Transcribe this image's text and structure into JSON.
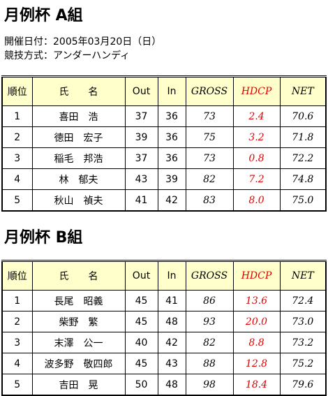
{
  "sections": [
    {
      "title": "月例杯 A組",
      "info": [
        "開催日付：2005年03月20日（日）",
        "競技方式：アンダーハンディ"
      ],
      "table": {
        "header": [
          "順位",
          "氏　　名",
          "Out",
          "In",
          "GROSS",
          "HDCP",
          "NET"
        ],
        "rows": [
          [
            "1",
            "喜田　浩",
            "37",
            "36",
            "73",
            "2.4",
            "70.6"
          ],
          [
            "2",
            "徳田　宏子",
            "39",
            "36",
            "75",
            "3.2",
            "71.8"
          ],
          [
            "3",
            "稲毛　邦浩",
            "37",
            "36",
            "73",
            "0.8",
            "72.2"
          ],
          [
            "4",
            "林　郁夫",
            "43",
            "39",
            "82",
            "7.2",
            "74.8"
          ],
          [
            "5",
            "秋山　禎夫",
            "41",
            "42",
            "83",
            "8.0",
            "75.0"
          ]
        ]
      }
    },
    {
      "title": "月例杯 B組",
      "info": [],
      "table": {
        "header": [
          "順位",
          "氏　　名",
          "Out",
          "In",
          "GROSS",
          "HDCP",
          "NET"
        ],
        "rows": [
          [
            "1",
            "長尾　昭義",
            "45",
            "41",
            "86",
            "13.6",
            "72.4"
          ],
          [
            "2",
            "柴野　繁",
            "45",
            "48",
            "93",
            "20.0",
            "73.0"
          ],
          [
            "3",
            "末澤　公一",
            "40",
            "42",
            "82",
            "8.8",
            "73.2"
          ],
          [
            "4",
            "波多野　敬四郎",
            "45",
            "43",
            "88",
            "12.8",
            "75.2"
          ],
          [
            "5",
            "吉田　晃",
            "50",
            "48",
            "98",
            "18.4",
            "79.6"
          ]
        ]
      }
    }
  ]
}
